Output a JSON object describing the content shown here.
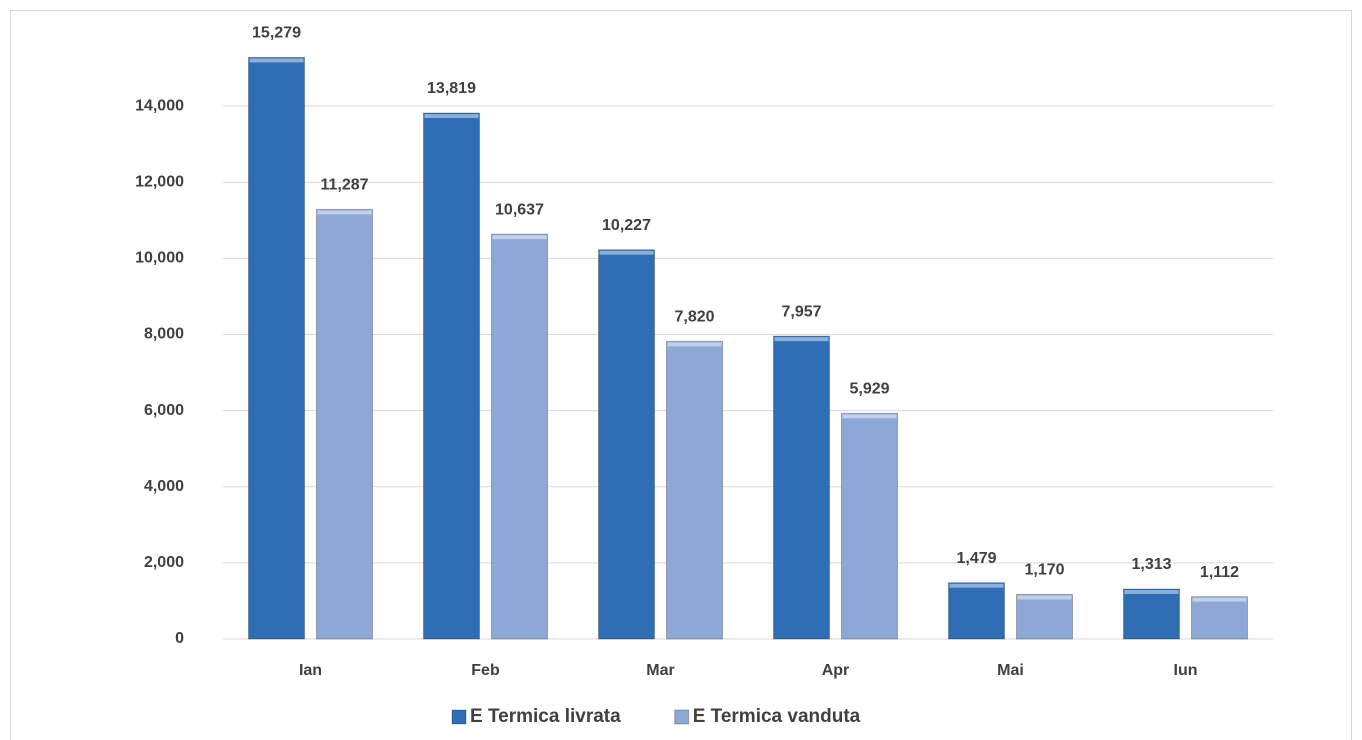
{
  "chart_data": {
    "type": "bar",
    "categories": [
      "Ian",
      "Feb",
      "Mar",
      "Apr",
      "Mai",
      "Iun"
    ],
    "series": [
      {
        "name": "E Termica livrata",
        "color": "#2f6db5",
        "values": [
          15279,
          13819,
          10227,
          7957,
          1479,
          1313
        ],
        "value_labels": [
          "15,279",
          "13,819",
          "10,227",
          "7,957",
          "1,479",
          "1,313"
        ]
      },
      {
        "name": "E Termica vanduta",
        "color": "#8ea8d6",
        "values": [
          11287,
          10637,
          7820,
          5929,
          1170,
          1112
        ],
        "value_labels": [
          "11,287",
          "10,637",
          "7,820",
          "5,929",
          "1,170",
          "1,112"
        ]
      }
    ],
    "ylim": [
      0,
      16000
    ],
    "yticks": [
      0,
      {
        "value": 2000,
        "label": "2,000"
      },
      {
        "value": 4000,
        "label": "4,000"
      },
      {
        "value": 6000,
        "label": "6,000"
      },
      {
        "value": 8000,
        "label": "8,000"
      },
      {
        "value": 10000,
        "label": "10,000"
      },
      {
        "value": 12000,
        "label": "12,000"
      },
      {
        "value": 14000,
        "label": "14,000"
      }
    ],
    "grid": true,
    "legend": "bottom"
  }
}
